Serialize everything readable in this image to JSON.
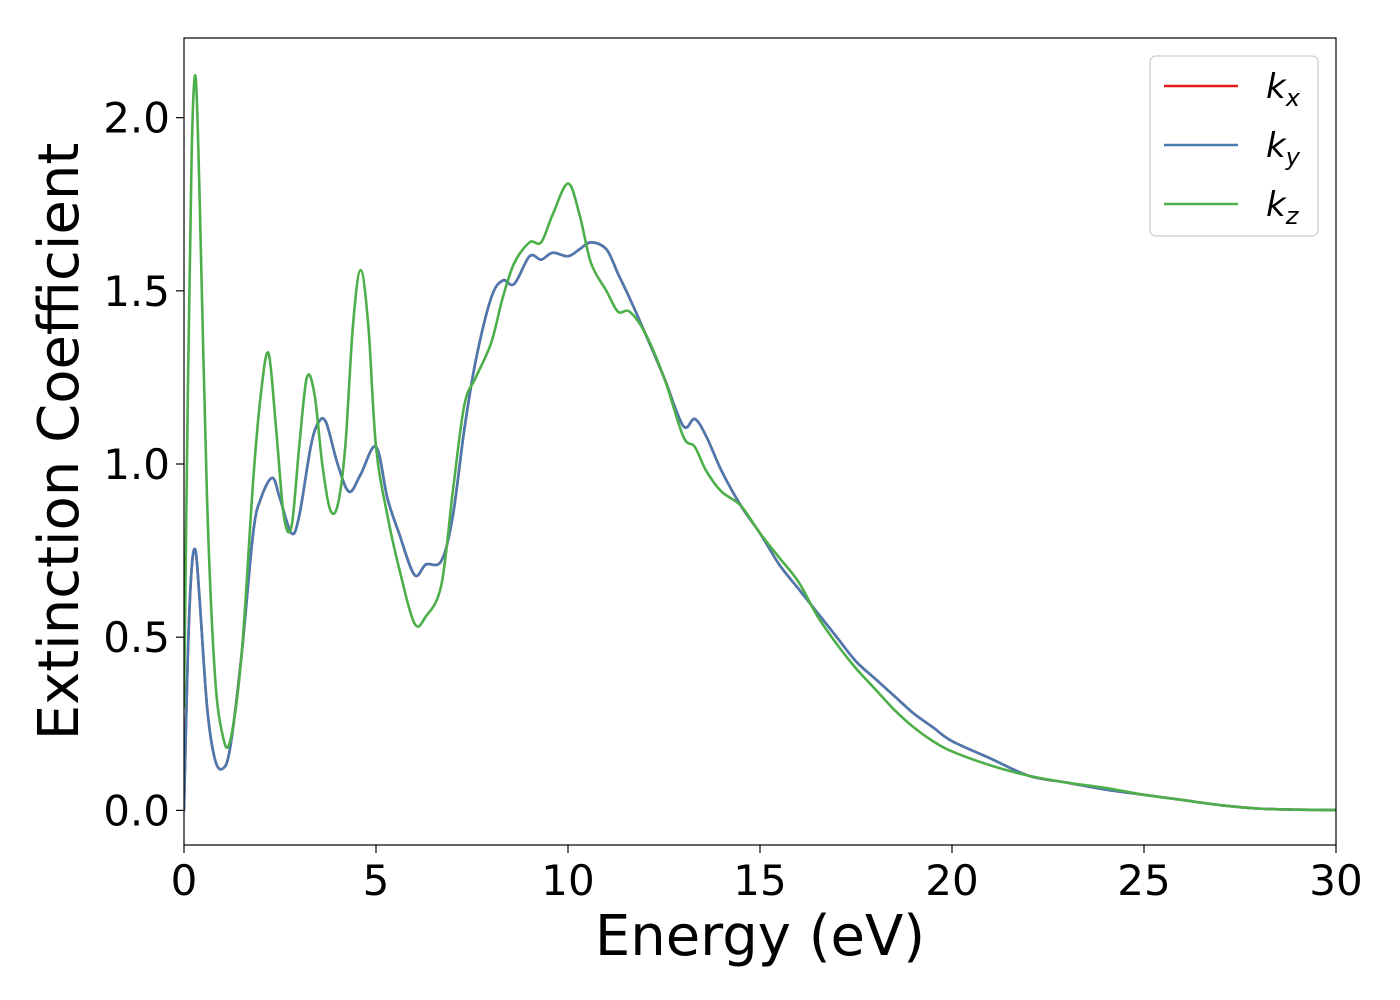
{
  "chart_data": {
    "type": "line",
    "title": "",
    "xlabel": "Energy (eV)",
    "ylabel": "Extinction Coefficient",
    "xlim": [
      0,
      30
    ],
    "ylim": [
      -0.1,
      2.23
    ],
    "xticks": [
      0,
      5,
      10,
      15,
      20,
      25,
      30
    ],
    "yticks": [
      0.0,
      0.5,
      1.0,
      1.5,
      2.0
    ],
    "xtick_labels": [
      "0",
      "5",
      "10",
      "15",
      "20",
      "25",
      "30"
    ],
    "ytick_labels": [
      "0.0",
      "0.5",
      "1.0",
      "1.5",
      "2.0"
    ],
    "grid": false,
    "legend_placement": "top-right",
    "series": [
      {
        "name": "k_x",
        "legend_main": "k",
        "legend_sub": "x",
        "color": "#e41a1c",
        "x": [
          0,
          0.1,
          0.2,
          0.3,
          0.4,
          0.6,
          0.8,
          1.0,
          1.2,
          1.5,
          1.8,
          2.0,
          2.3,
          2.5,
          2.8,
          3.0,
          3.3,
          3.5,
          3.7,
          4.0,
          4.3,
          4.6,
          5.0,
          5.3,
          5.6,
          6.0,
          6.3,
          6.7,
          7.0,
          7.3,
          7.6,
          8.0,
          8.3,
          8.6,
          9.0,
          9.3,
          9.6,
          10.0,
          10.3,
          10.6,
          11.0,
          11.3,
          11.6,
          12.0,
          12.5,
          13.0,
          13.3,
          13.6,
          14.0,
          14.5,
          15.0,
          15.5,
          16.0,
          16.5,
          17.0,
          17.5,
          18.0,
          18.5,
          19.0,
          19.5,
          20.0,
          21.0,
          22.0,
          23.0,
          24.0,
          25.0,
          26.0,
          27.0,
          28.0,
          29.0,
          30.0
        ],
        "y": [
          0.0,
          0.45,
          0.7,
          0.75,
          0.62,
          0.3,
          0.15,
          0.12,
          0.18,
          0.45,
          0.8,
          0.9,
          0.96,
          0.9,
          0.8,
          0.85,
          1.05,
          1.12,
          1.12,
          1.0,
          0.92,
          0.97,
          1.05,
          0.9,
          0.8,
          0.68,
          0.71,
          0.72,
          0.85,
          1.1,
          1.3,
          1.48,
          1.53,
          1.52,
          1.6,
          1.59,
          1.61,
          1.6,
          1.62,
          1.64,
          1.62,
          1.55,
          1.48,
          1.38,
          1.25,
          1.11,
          1.13,
          1.08,
          0.98,
          0.88,
          0.8,
          0.71,
          0.64,
          0.57,
          0.5,
          0.43,
          0.38,
          0.33,
          0.28,
          0.24,
          0.2,
          0.15,
          0.1,
          0.08,
          0.06,
          0.045,
          0.03,
          0.015,
          0.005,
          0.002,
          0.001
        ]
      },
      {
        "name": "k_y",
        "legend_main": "k",
        "legend_sub": "y",
        "color": "#4a7ab0",
        "x": [
          0,
          0.1,
          0.2,
          0.3,
          0.4,
          0.6,
          0.8,
          1.0,
          1.2,
          1.5,
          1.8,
          2.0,
          2.3,
          2.5,
          2.8,
          3.0,
          3.3,
          3.5,
          3.7,
          4.0,
          4.3,
          4.6,
          5.0,
          5.3,
          5.6,
          6.0,
          6.3,
          6.7,
          7.0,
          7.3,
          7.6,
          8.0,
          8.3,
          8.6,
          9.0,
          9.3,
          9.6,
          10.0,
          10.3,
          10.6,
          11.0,
          11.3,
          11.6,
          12.0,
          12.5,
          13.0,
          13.3,
          13.6,
          14.0,
          14.5,
          15.0,
          15.5,
          16.0,
          16.5,
          17.0,
          17.5,
          18.0,
          18.5,
          19.0,
          19.5,
          20.0,
          21.0,
          22.0,
          23.0,
          24.0,
          25.0,
          26.0,
          27.0,
          28.0,
          29.0,
          30.0
        ],
        "y": [
          0.0,
          0.45,
          0.7,
          0.75,
          0.62,
          0.3,
          0.15,
          0.12,
          0.18,
          0.45,
          0.8,
          0.9,
          0.96,
          0.9,
          0.8,
          0.85,
          1.05,
          1.12,
          1.12,
          1.0,
          0.92,
          0.97,
          1.05,
          0.9,
          0.8,
          0.68,
          0.71,
          0.72,
          0.85,
          1.1,
          1.3,
          1.48,
          1.53,
          1.52,
          1.6,
          1.59,
          1.61,
          1.6,
          1.62,
          1.64,
          1.62,
          1.55,
          1.48,
          1.38,
          1.25,
          1.11,
          1.13,
          1.08,
          0.98,
          0.88,
          0.8,
          0.71,
          0.64,
          0.57,
          0.5,
          0.43,
          0.38,
          0.33,
          0.28,
          0.24,
          0.2,
          0.15,
          0.1,
          0.08,
          0.06,
          0.045,
          0.03,
          0.015,
          0.005,
          0.002,
          0.001
        ]
      },
      {
        "name": "k_z",
        "legend_main": "k",
        "legend_sub": "z",
        "color": "#4daf4a",
        "x": [
          0,
          0.1,
          0.2,
          0.3,
          0.4,
          0.6,
          0.8,
          1.0,
          1.2,
          1.5,
          1.8,
          2.0,
          2.2,
          2.4,
          2.6,
          2.8,
          3.0,
          3.2,
          3.4,
          3.6,
          3.8,
          4.0,
          4.2,
          4.4,
          4.6,
          4.8,
          5.0,
          5.3,
          5.6,
          6.0,
          6.3,
          6.7,
          7.0,
          7.3,
          7.6,
          8.0,
          8.3,
          8.6,
          9.0,
          9.3,
          9.6,
          10.0,
          10.3,
          10.6,
          11.0,
          11.3,
          11.6,
          12.0,
          12.5,
          13.0,
          13.3,
          13.6,
          14.0,
          14.5,
          15.0,
          15.5,
          16.0,
          16.5,
          17.0,
          17.5,
          18.0,
          18.5,
          19.0,
          19.5,
          20.0,
          21.0,
          22.0,
          23.0,
          24.0,
          25.0,
          26.0,
          27.0,
          28.0,
          29.0,
          30.0
        ],
        "y": [
          0.3,
          1.2,
          1.9,
          2.12,
          1.8,
          0.9,
          0.4,
          0.22,
          0.2,
          0.45,
          0.95,
          1.2,
          1.32,
          1.1,
          0.85,
          0.82,
          1.05,
          1.25,
          1.2,
          1.0,
          0.87,
          0.88,
          1.05,
          1.4,
          1.56,
          1.4,
          1.05,
          0.85,
          0.7,
          0.54,
          0.56,
          0.65,
          0.92,
          1.17,
          1.25,
          1.35,
          1.48,
          1.58,
          1.64,
          1.64,
          1.72,
          1.81,
          1.72,
          1.58,
          1.5,
          1.44,
          1.44,
          1.38,
          1.25,
          1.08,
          1.05,
          0.98,
          0.92,
          0.88,
          0.8,
          0.73,
          0.66,
          0.56,
          0.48,
          0.41,
          0.35,
          0.29,
          0.24,
          0.2,
          0.17,
          0.13,
          0.1,
          0.08,
          0.065,
          0.045,
          0.03,
          0.015,
          0.005,
          0.002,
          0.001
        ]
      }
    ]
  }
}
